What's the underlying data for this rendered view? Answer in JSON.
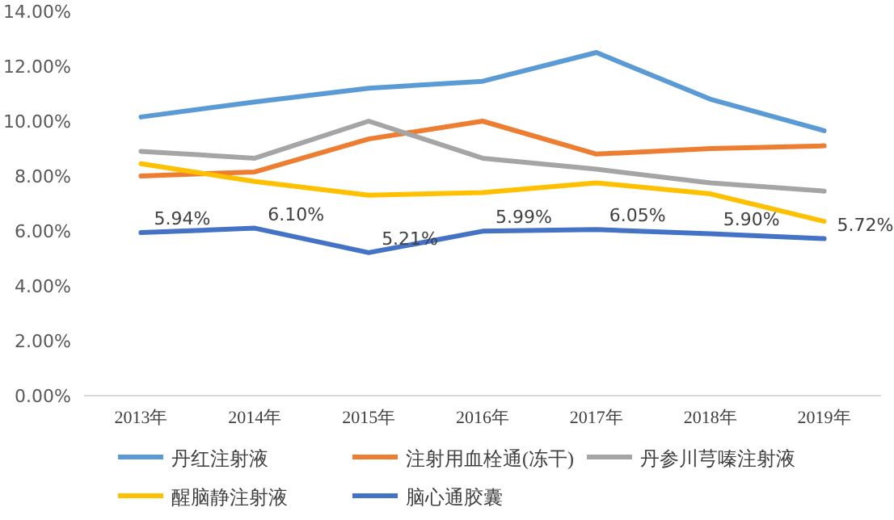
{
  "chart_data": {
    "type": "line",
    "categories": [
      "2013年",
      "2014年",
      "2015年",
      "2016年",
      "2017年",
      "2018年",
      "2019年"
    ],
    "ylim": [
      0,
      14
    ],
    "yticks": [
      {
        "value": 0,
        "label": "0.00%"
      },
      {
        "value": 2,
        "label": "2.00%"
      },
      {
        "value": 4,
        "label": "4.00%"
      },
      {
        "value": 6,
        "label": "6.00%"
      },
      {
        "value": 8,
        "label": "8.00%"
      },
      {
        "value": 10,
        "label": "10.00%"
      },
      {
        "value": 12,
        "label": "12.00%"
      },
      {
        "value": 14,
        "label": "14.00%"
      }
    ],
    "grid": false,
    "legend": "bottom",
    "marker": "none",
    "line_style": "solid",
    "series": [
      {
        "name": "丹红注射液",
        "color": "#5b9bd5",
        "values": [
          10.15,
          10.7,
          11.2,
          11.45,
          12.5,
          10.8,
          9.65
        ]
      },
      {
        "name": "注射用血栓通(冻干)",
        "color": "#ed7d31",
        "values": [
          8.0,
          8.15,
          9.35,
          10.0,
          8.8,
          9.0,
          9.1
        ]
      },
      {
        "name": "丹参川芎嗪注射液",
        "color": "#a5a5a5",
        "values": [
          8.9,
          8.65,
          10.0,
          8.65,
          8.25,
          7.75,
          7.45
        ]
      },
      {
        "name": "醒脑静注射液",
        "color": "#ffc000",
        "values": [
          8.45,
          7.8,
          7.3,
          7.4,
          7.75,
          7.35,
          6.35
        ]
      },
      {
        "name": "脑心通胶囊",
        "color": "#4472c4",
        "values": [
          5.94,
          6.1,
          5.21,
          5.99,
          6.05,
          5.9,
          5.72
        ],
        "value_labels": [
          "5.94%",
          "6.10%",
          "5.21%",
          "5.99%",
          "6.05%",
          "5.90%",
          "5.72%"
        ]
      }
    ]
  }
}
